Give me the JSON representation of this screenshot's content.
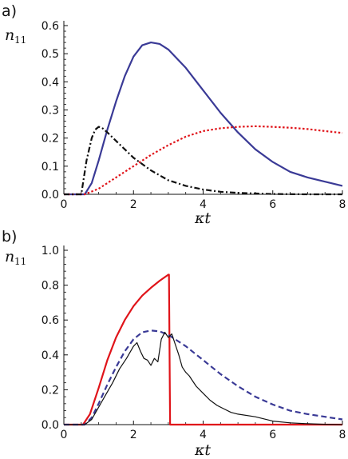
{
  "chart_data": [
    {
      "type": "line",
      "panel_label": "a)",
      "xlabel": "κt",
      "ylabel": "n",
      "ylabel_sub": "11",
      "xlim": [
        0,
        8
      ],
      "ylim": [
        0,
        0.6
      ],
      "xticks": [
        0,
        2,
        4,
        6,
        8
      ],
      "xtick_labels": [
        "0",
        "2",
        "4",
        "6",
        "8"
      ],
      "yticks": [
        0.0,
        0.1,
        0.2,
        0.3,
        0.4,
        0.5,
        0.6
      ],
      "ytick_labels": [
        "0.0",
        "0.1",
        "0.2",
        "0.3",
        "0.4",
        "0.5",
        "0.6"
      ],
      "series": [
        {
          "style": "solid",
          "color": "#3a3a96",
          "x": [
            0,
            0.6,
            0.8,
            1.0,
            1.25,
            1.5,
            1.75,
            2.0,
            2.25,
            2.5,
            2.75,
            3.0,
            3.5,
            4.0,
            4.5,
            5.0,
            5.5,
            6.0,
            6.5,
            7.0,
            7.5,
            8.0
          ],
          "y": [
            0,
            0,
            0.04,
            0.12,
            0.23,
            0.33,
            0.42,
            0.49,
            0.53,
            0.54,
            0.535,
            0.515,
            0.45,
            0.37,
            0.29,
            0.22,
            0.16,
            0.115,
            0.08,
            0.06,
            0.045,
            0.03
          ]
        },
        {
          "style": "dotted",
          "color": "#e0141a",
          "x": [
            0,
            0.6,
            1.0,
            1.5,
            2.0,
            2.5,
            3.0,
            3.5,
            4.0,
            4.5,
            5.0,
            5.5,
            6.0,
            6.5,
            7.0,
            7.5,
            8.0
          ],
          "y": [
            0,
            0,
            0.02,
            0.06,
            0.1,
            0.14,
            0.175,
            0.205,
            0.225,
            0.235,
            0.24,
            0.242,
            0.24,
            0.237,
            0.232,
            0.225,
            0.218
          ]
        },
        {
          "style": "dashdot",
          "color": "#111111",
          "x": [
            0,
            0.5,
            0.65,
            0.8,
            0.9,
            1.0,
            1.1,
            1.25,
            1.5,
            1.75,
            2.0,
            2.5,
            3.0,
            3.5,
            4.0,
            4.5,
            5.0,
            6.0,
            7.0,
            8.0
          ],
          "y": [
            0,
            0,
            0.12,
            0.2,
            0.23,
            0.24,
            0.236,
            0.22,
            0.19,
            0.16,
            0.13,
            0.085,
            0.05,
            0.03,
            0.017,
            0.009,
            0.005,
            0.001,
            0,
            0
          ]
        }
      ]
    },
    {
      "type": "line",
      "panel_label": "b)",
      "xlabel": "κt",
      "ylabel": "n",
      "ylabel_sub": "11",
      "xlim": [
        0,
        8
      ],
      "ylim": [
        0,
        1.0
      ],
      "xticks": [
        0,
        2,
        4,
        6,
        8
      ],
      "xtick_labels": [
        "0",
        "2",
        "4",
        "6",
        "8"
      ],
      "yticks": [
        0.0,
        0.2,
        0.4,
        0.6,
        0.8,
        1.0
      ],
      "ytick_labels": [
        "0.0",
        "0.2",
        "0.4",
        "0.6",
        "0.8",
        "1.0"
      ],
      "series": [
        {
          "style": "solid",
          "color": "#e0141a",
          "x": [
            0,
            0.55,
            0.75,
            1.0,
            1.25,
            1.5,
            1.75,
            2.0,
            2.25,
            2.5,
            2.75,
            3.0,
            3.02,
            3.05,
            3.2,
            4.0,
            8.0
          ],
          "y": [
            0,
            0,
            0.06,
            0.21,
            0.37,
            0.5,
            0.6,
            0.68,
            0.74,
            0.785,
            0.825,
            0.86,
            0.86,
            0,
            0,
            0,
            0
          ]
        },
        {
          "style": "dashed",
          "color": "#3a3a96",
          "x": [
            0,
            0.6,
            0.8,
            1.0,
            1.25,
            1.5,
            1.75,
            2.0,
            2.25,
            2.5,
            2.75,
            3.0,
            3.5,
            4.0,
            4.5,
            5.0,
            5.5,
            6.0,
            6.5,
            7.0,
            7.5,
            8.0
          ],
          "y": [
            0,
            0,
            0.04,
            0.12,
            0.23,
            0.33,
            0.42,
            0.49,
            0.53,
            0.54,
            0.535,
            0.515,
            0.45,
            0.37,
            0.29,
            0.22,
            0.16,
            0.115,
            0.08,
            0.06,
            0.045,
            0.03
          ]
        },
        {
          "style": "solid",
          "color": "#111111",
          "x": [
            0,
            0.6,
            0.8,
            1.0,
            1.2,
            1.4,
            1.6,
            1.8,
            2.0,
            2.1,
            2.2,
            2.3,
            2.4,
            2.5,
            2.6,
            2.7,
            2.8,
            2.9,
            3.0,
            3.1,
            3.2,
            3.3,
            3.4,
            3.5,
            3.6,
            3.7,
            3.8,
            4.0,
            4.2,
            4.4,
            4.6,
            4.8,
            5.0,
            5.5,
            6.0,
            6.5,
            7.0,
            7.5,
            8.0
          ],
          "y": [
            0,
            0,
            0.03,
            0.1,
            0.17,
            0.24,
            0.32,
            0.38,
            0.45,
            0.47,
            0.42,
            0.38,
            0.37,
            0.34,
            0.38,
            0.36,
            0.49,
            0.53,
            0.5,
            0.52,
            0.46,
            0.4,
            0.33,
            0.3,
            0.28,
            0.25,
            0.22,
            0.18,
            0.14,
            0.11,
            0.09,
            0.07,
            0.06,
            0.045,
            0.02,
            0.01,
            0.005,
            0.002,
            0
          ]
        }
      ]
    }
  ]
}
